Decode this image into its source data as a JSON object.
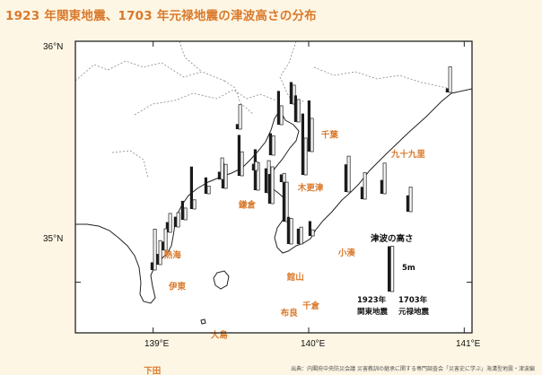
{
  "title": "1923 年関東地震、1703 年元禄地震の津波高さの分布",
  "credit": "出典：内閣府中央防災会議 災害教訓の継承に関する専門調査会「災害史に学ぶ」海溝型地震・津波編",
  "axes": {
    "lat_labels": [
      "36°N",
      "35°N"
    ],
    "lon_labels": [
      "139°E",
      "140°E",
      "141°E"
    ]
  },
  "places": [
    {
      "id": "chiba",
      "label": "千葉",
      "lon": 140.08,
      "lat": 35.6
    },
    {
      "id": "kujukuri",
      "label": "九十九里",
      "lon": 140.53,
      "lat": 35.52
    },
    {
      "id": "kisarazu",
      "label": "木更津",
      "lon": 139.93,
      "lat": 35.38
    },
    {
      "id": "kamakura",
      "label": "鎌倉",
      "lon": 139.55,
      "lat": 35.31
    },
    {
      "id": "atami",
      "label": "熱海",
      "lon": 139.07,
      "lat": 35.1
    },
    {
      "id": "tateyama",
      "label": "館山",
      "lon": 139.86,
      "lat": 35.01
    },
    {
      "id": "kominato",
      "label": "小湊",
      "lon": 140.19,
      "lat": 35.11
    },
    {
      "id": "ito",
      "label": "伊東",
      "lon": 139.1,
      "lat": 34.97
    },
    {
      "id": "chikura",
      "label": "千倉",
      "lon": 139.96,
      "lat": 34.89
    },
    {
      "id": "mera",
      "label": "布良",
      "lon": 139.82,
      "lat": 34.86
    },
    {
      "id": "oshima",
      "label": "大島",
      "lon": 139.37,
      "lat": 34.77
    },
    {
      "id": "shimoda",
      "label": "下田",
      "lon": 138.94,
      "lat": 34.62
    }
  ],
  "legend": {
    "title": "津波の高さ",
    "scale_label": "5m",
    "scale_value_m": 5,
    "series_1923": [
      "1923年",
      "関東地震"
    ],
    "series_1703": [
      "1703年",
      "元禄地震"
    ]
  },
  "colors": {
    "bar_1923": "#1a1a1a",
    "bar_1703": "#fafafa",
    "bar_1703_stroke": "#333333",
    "place_label": "#d9792b",
    "land": "#ffffff",
    "sea": "#ffffff",
    "frame": "#222222"
  },
  "chart_data": {
    "type": "bar",
    "unit": "m",
    "series": [
      {
        "name": "1923年 関東地震",
        "values": [
          0.8,
          3.2,
          2.7,
          2.4,
          5.4,
          10.0,
          12.0,
          4.3,
          5.2,
          6.6,
          4.3,
          4.8,
          9.0,
          5.3,
          3.0,
          2.9,
          5.8,
          8.0,
          1.3,
          8.0,
          5.0,
          3.2,
          8.3,
          3.7,
          2.0,
          2.0,
          1.7,
          2.1,
          1.5,
          1.0,
          1.5,
          1.5
        ]
      },
      {
        "name": "1703年 元禄地震",
        "values": [
          5.0,
          4.8,
          6.0,
          5.2,
          7.0,
          6.5,
          7.2,
          3.7,
          4.4,
          3.7,
          3.8,
          6.3,
          7.7,
          5.0,
          3.3,
          1.2,
          7.2,
          5.4,
          1.7,
          4.7,
          4.7,
          1.5,
          1.8,
          2.3,
          2.8,
          3.7,
          4.2,
          4.7,
          8.0,
          4.8,
          4.2,
          1.7
        ]
      }
    ]
  }
}
